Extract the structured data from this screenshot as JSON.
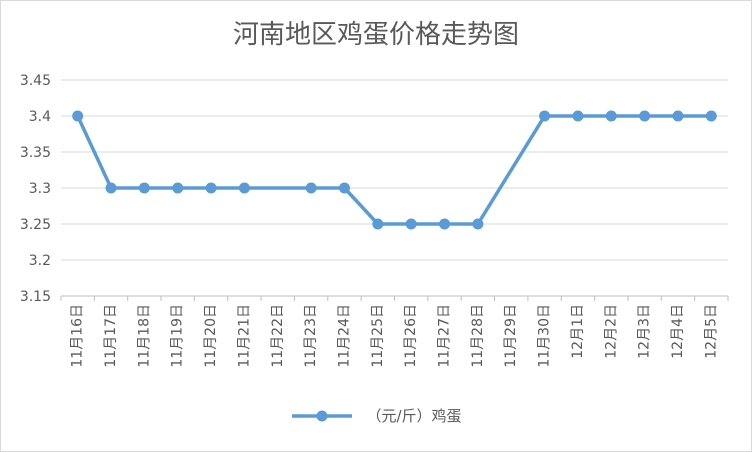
{
  "chart_data": {
    "type": "line",
    "title": "河南地区鸡蛋价格走势图",
    "xlabel": "",
    "ylabel": "",
    "categories": [
      "11月16日",
      "11月17日",
      "11月18日",
      "11月19日",
      "11月20日",
      "11月21日",
      "11月22日",
      "11月23日",
      "11月24日",
      "11月25日",
      "11月26日",
      "11月27日",
      "11月28日",
      "11月29日",
      "11月30日",
      "12月1日",
      "12月2日",
      "12月3日",
      "12月4日",
      "12月5日"
    ],
    "series": [
      {
        "name": "（元/斤）鸡蛋",
        "values": [
          3.4,
          3.3,
          3.3,
          3.3,
          3.3,
          3.3,
          null,
          3.3,
          3.3,
          3.25,
          3.25,
          3.25,
          3.25,
          null,
          3.4,
          3.4,
          3.4,
          3.4,
          3.4,
          3.4
        ]
      }
    ],
    "ylim": [
      3.15,
      3.45
    ],
    "yticks": [
      "3.45",
      "3.4",
      "3.35",
      "3.3",
      "3.25",
      "3.2",
      "3.15"
    ],
    "grid": true,
    "legend_position": "bottom",
    "colors": {
      "series": "#5b9bd5",
      "grid": "#d9d9d9",
      "axis": "#bfbfbf",
      "text": "#595959"
    }
  }
}
